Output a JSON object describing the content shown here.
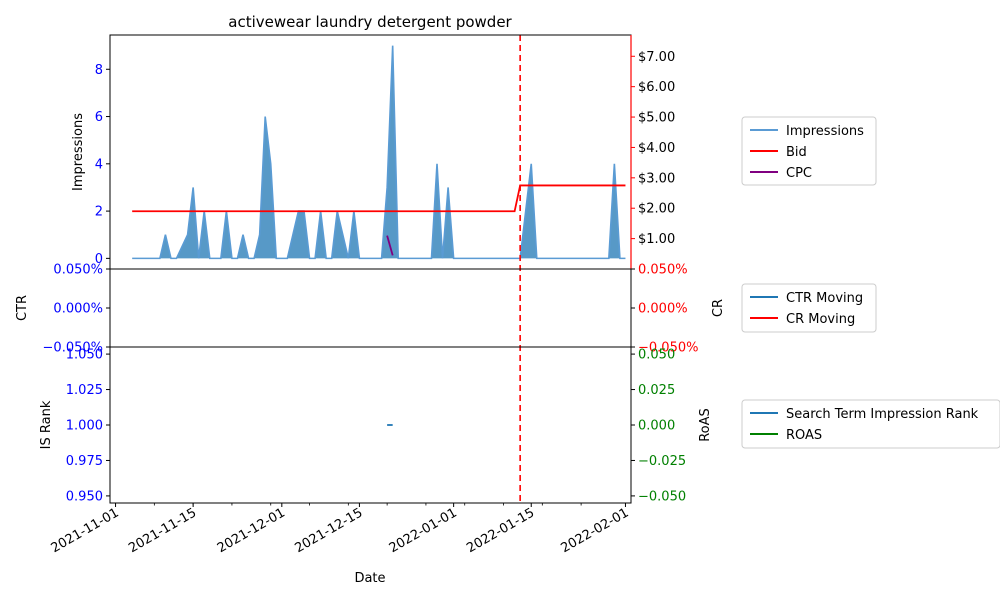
{
  "chart_data": {
    "type": "line",
    "title": "activewear laundry detergent powder",
    "xlabel": "Date",
    "x_range": [
      "2021-10-31",
      "2022-02-02"
    ],
    "x_ticks": [
      "2021-11-01",
      "2021-11-15",
      "2021-12-01",
      "2021-12-15",
      "2022-01-01",
      "2022-01-15",
      "2022-02-01"
    ],
    "vline_date": "2022-01-13",
    "vline_color": "#ff0000",
    "panels": [
      {
        "id": "impressions",
        "ylabel_left": "Impressions",
        "ylim_left": [
          -0.45,
          9.45
        ],
        "yticks_left": [
          "0",
          "2",
          "4",
          "6",
          "8"
        ],
        "left_tick_color": "#0000ff",
        "ylim_right": [
          0.0,
          7.7
        ],
        "yticks_right": [
          "$1.00",
          "$2.00",
          "$3.00",
          "$4.00",
          "$5.00",
          "$6.00",
          "$7.00"
        ],
        "right_axis_color": "#ff0000",
        "series": [
          {
            "name": "Impressions",
            "color": "#5a9bd4",
            "style": "area",
            "points": [
              [
                "2021-11-04",
                0
              ],
              [
                "2021-11-09",
                0
              ],
              [
                "2021-11-10",
                1
              ],
              [
                "2021-11-11",
                0
              ],
              [
                "2021-11-12",
                0
              ],
              [
                "2021-11-14",
                1
              ],
              [
                "2021-11-15",
                3
              ],
              [
                "2021-11-16",
                0
              ],
              [
                "2021-11-17",
                2
              ],
              [
                "2021-11-18",
                0
              ],
              [
                "2021-11-20",
                0
              ],
              [
                "2021-11-21",
                2
              ],
              [
                "2021-11-22",
                0
              ],
              [
                "2021-11-23",
                0
              ],
              [
                "2021-11-24",
                1
              ],
              [
                "2021-11-25",
                0
              ],
              [
                "2021-11-26",
                0
              ],
              [
                "2021-11-27",
                1
              ],
              [
                "2021-11-28",
                6
              ],
              [
                "2021-11-29",
                4
              ],
              [
                "2021-11-30",
                0
              ],
              [
                "2021-12-02",
                0
              ],
              [
                "2021-12-04",
                2
              ],
              [
                "2021-12-05",
                2
              ],
              [
                "2021-12-06",
                0
              ],
              [
                "2021-12-07",
                0
              ],
              [
                "2021-12-08",
                2
              ],
              [
                "2021-12-09",
                0
              ],
              [
                "2021-12-10",
                0
              ],
              [
                "2021-12-11",
                2
              ],
              [
                "2021-12-12",
                1
              ],
              [
                "2021-12-13",
                0
              ],
              [
                "2021-12-14",
                2
              ],
              [
                "2021-12-15",
                0
              ],
              [
                "2021-12-19",
                0
              ],
              [
                "2021-12-20",
                3
              ],
              [
                "2021-12-21",
                9
              ],
              [
                "2021-12-22",
                0
              ],
              [
                "2021-12-28",
                0
              ],
              [
                "2021-12-29",
                4
              ],
              [
                "2021-12-30",
                0
              ],
              [
                "2021-12-31",
                3
              ],
              [
                "2022-01-01",
                0
              ],
              [
                "2022-01-13",
                0
              ],
              [
                "2022-01-15",
                4
              ],
              [
                "2022-01-16",
                0
              ],
              [
                "2022-01-29",
                0
              ],
              [
                "2022-01-30",
                4
              ],
              [
                "2022-01-31",
                0
              ],
              [
                "2022-02-01",
                0
              ]
            ]
          },
          {
            "name": "Bid",
            "color": "#ff0000",
            "style": "line",
            "axis": "right",
            "points": [
              [
                "2021-11-04",
                1.9
              ],
              [
                "2022-01-12",
                1.9
              ],
              [
                "2022-01-13",
                2.75
              ],
              [
                "2022-02-01",
                2.75
              ]
            ]
          },
          {
            "name": "CPC",
            "color": "#800080",
            "style": "line",
            "axis": "right",
            "points": [
              [
                "2021-12-20",
                1.1
              ],
              [
                "2021-12-21",
                0.45
              ]
            ]
          }
        ]
      },
      {
        "id": "rates",
        "ylabel_left": "CTR",
        "ylabel_right": "CR",
        "ylim": [
          -0.05,
          0.05
        ],
        "yticks_left": [
          "−0.050%",
          "0.000%",
          "0.050%"
        ],
        "yticks_right": [
          "−0.050%",
          "0.000%",
          "0.050%"
        ],
        "left_tick_color": "#0000ff",
        "right_tick_color": "#ff0000",
        "series": [
          {
            "name": "CTR Moving",
            "color": "#1f77b4",
            "points": []
          },
          {
            "name": "CR Moving",
            "color": "#ff0000",
            "points": []
          }
        ]
      },
      {
        "id": "rank",
        "ylabel_left": "IS Rank",
        "ylabel_right": "RoAS",
        "ylim_left": [
          0.945,
          1.055
        ],
        "yticks_left": [
          "0.950",
          "0.975",
          "1.000",
          "1.025",
          "1.050"
        ],
        "ylim_right": [
          -0.055,
          0.055
        ],
        "yticks_right": [
          "−0.050",
          "−0.025",
          "0.000",
          "0.025",
          "0.050"
        ],
        "left_tick_color": "#0000ff",
        "right_tick_color": "#008000",
        "series": [
          {
            "name": "Search Term Impression Rank",
            "color": "#1f77b4",
            "points": [
              [
                "2021-12-20",
                1.0
              ],
              [
                "2021-12-21",
                1.0
              ]
            ]
          },
          {
            "name": "ROAS",
            "color": "#008000",
            "points": []
          }
        ]
      }
    ]
  }
}
